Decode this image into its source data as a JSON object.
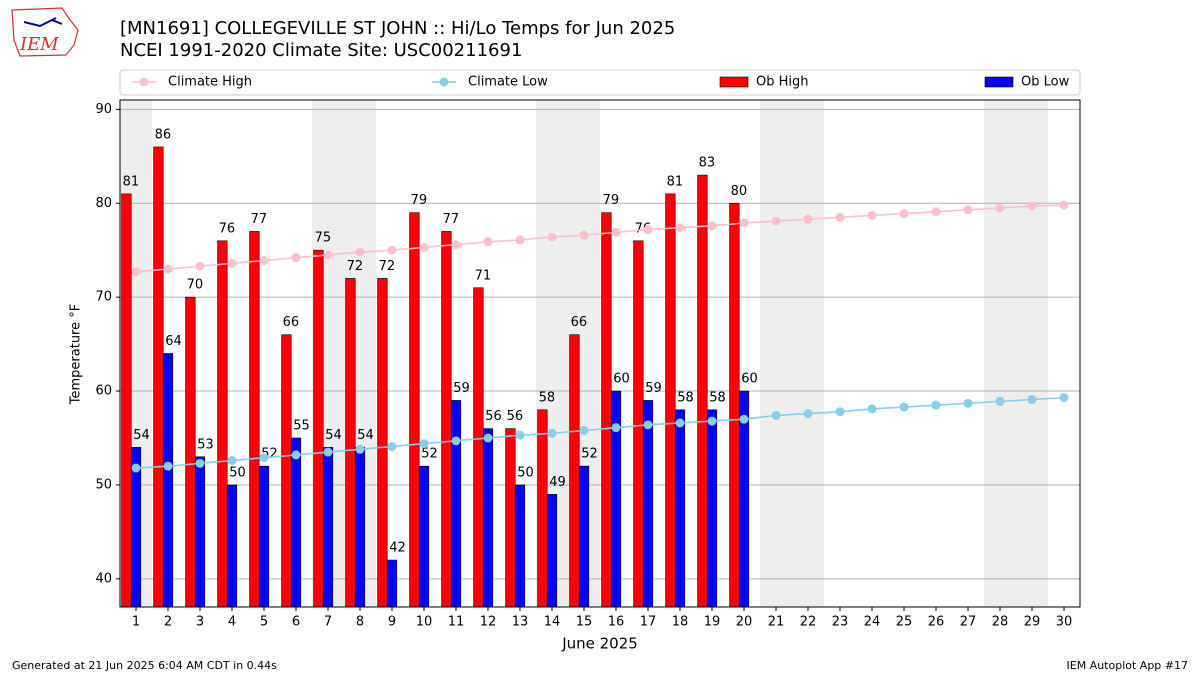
{
  "logo_text": "IEM",
  "footer_left": "Generated at 21 Jun 2025 6:04 AM CDT in 0.44s",
  "footer_right": "IEM Autoplot App #17",
  "chart_data": {
    "type": "bar",
    "title": "[MN1691] COLLEGEVILLE ST JOHN :: Hi/Lo Temps for Jun 2025",
    "subtitle": "NCEI 1991-2020 Climate Site: USC00211691",
    "x_label": "June 2025",
    "y_label": "Temperature °F",
    "x": [
      1,
      2,
      3,
      4,
      5,
      6,
      7,
      8,
      9,
      10,
      11,
      12,
      13,
      14,
      15,
      16,
      17,
      18,
      19,
      20,
      21,
      22,
      23,
      24,
      25,
      26,
      27,
      28,
      29,
      30
    ],
    "xlim": [
      0.5,
      30.5
    ],
    "ylim": [
      37,
      91
    ],
    "yticks": [
      40,
      50,
      60,
      70,
      80,
      90
    ],
    "grid": true,
    "shaded_days": [
      1,
      7,
      8,
      14,
      15,
      21,
      22,
      28,
      29
    ],
    "legend": "top",
    "series": [
      {
        "name": "Climate High",
        "type": "line",
        "color": "#ffc0cb",
        "values": [
          72.7,
          73.0,
          73.3,
          73.6,
          73.9,
          74.2,
          74.5,
          74.8,
          75.0,
          75.3,
          75.6,
          75.9,
          76.1,
          76.4,
          76.6,
          76.9,
          77.2,
          77.4,
          77.6,
          77.9,
          78.1,
          78.3,
          78.5,
          78.7,
          78.9,
          79.1,
          79.3,
          79.5,
          79.7,
          79.8
        ]
      },
      {
        "name": "Climate Low",
        "type": "line",
        "color": "#87ceeb",
        "values": [
          51.8,
          52.0,
          52.3,
          52.6,
          52.9,
          53.2,
          53.5,
          53.8,
          54.1,
          54.4,
          54.7,
          55.0,
          55.3,
          55.5,
          55.8,
          56.1,
          56.4,
          56.6,
          56.8,
          57.0,
          57.4,
          57.6,
          57.8,
          58.1,
          58.3,
          58.5,
          58.7,
          58.9,
          59.1,
          59.3
        ]
      },
      {
        "name": "Ob High",
        "type": "bar",
        "color": "#ff0000",
        "values": [
          81,
          86,
          70,
          76,
          77,
          66,
          75,
          72,
          72,
          79,
          77,
          71,
          56,
          58,
          66,
          79,
          76,
          81,
          83,
          80,
          null,
          null,
          null,
          null,
          null,
          null,
          null,
          null,
          null,
          null
        ]
      },
      {
        "name": "Ob Low",
        "type": "bar",
        "color": "#0000ff",
        "values": [
          54,
          64,
          53,
          50,
          52,
          55,
          54,
          54,
          42,
          52,
          59,
          56,
          50,
          49,
          52,
          60,
          59,
          58,
          58,
          60,
          null,
          null,
          null,
          null,
          null,
          null,
          null,
          null,
          null,
          null
        ]
      }
    ]
  }
}
